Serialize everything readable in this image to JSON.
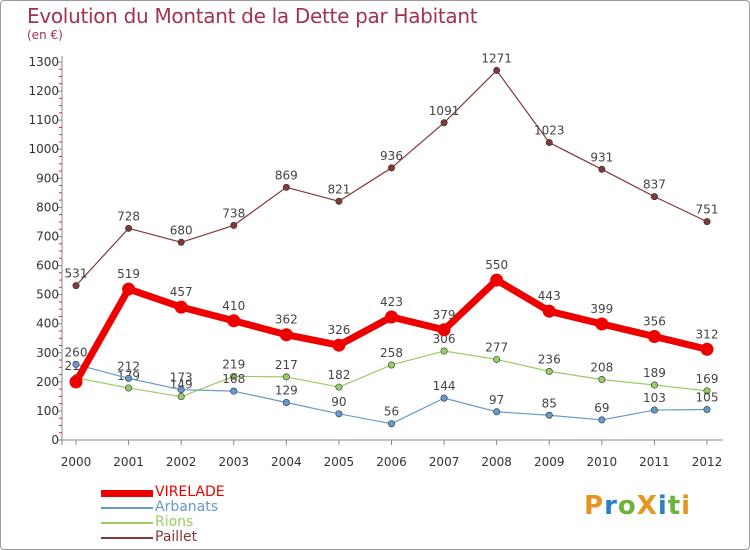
{
  "title": "Evolution du Montant de la Dette par Habitant",
  "subtitle": "(en €)",
  "logo": {
    "text": "ProXiti",
    "letters": [
      {
        "ch": "P",
        "color": "#e8951f"
      },
      {
        "ch": "r",
        "color": "#2a7fc5"
      },
      {
        "ch": "o",
        "color": "#6bb33a"
      },
      {
        "ch": "X",
        "color": "#e8951f"
      },
      {
        "ch": "i",
        "color": "#2a7fc5"
      },
      {
        "ch": "t",
        "color": "#6bb33a"
      },
      {
        "ch": "i",
        "color": "#e8951f"
      }
    ]
  },
  "chart_data": {
    "type": "line",
    "title": "Evolution du Montant de la Dette par Habitant",
    "ylabel": "(en €)",
    "xlabel": "",
    "x": [
      "2000",
      "2001",
      "2002",
      "2003",
      "2004",
      "2005",
      "2006",
      "2007",
      "2008",
      "2009",
      "2010",
      "2011",
      "2012"
    ],
    "ylim": [
      0,
      1300
    ],
    "yticks": [
      0,
      100,
      200,
      300,
      400,
      500,
      600,
      700,
      800,
      900,
      1000,
      1100,
      1200,
      1300
    ],
    "grid": false,
    "legend_position": "bottom-left",
    "series": [
      {
        "name": "VIRELADE",
        "color": "#ee0000",
        "emphasis": true,
        "values": [
          200,
          519,
          457,
          410,
          362,
          326,
          423,
          379,
          550,
          443,
          399,
          356,
          312
        ],
        "labels": [
          "",
          "519",
          "457",
          "410",
          "362",
          "326",
          "423",
          "379",
          "550",
          "443",
          "399",
          "356",
          "312"
        ]
      },
      {
        "name": "Arbanats",
        "color": "#6699cc",
        "values": [
          260,
          212,
          173,
          168,
          129,
          90,
          56,
          144,
          97,
          85,
          69,
          103,
          105
        ],
        "labels": [
          "260",
          "212",
          "173",
          "168",
          "129",
          "90",
          "56",
          "144",
          "97",
          "85",
          "69",
          "103",
          "105"
        ]
      },
      {
        "name": "Rions",
        "color": "#99cc66",
        "values": [
          214,
          179,
          149,
          219,
          217,
          182,
          258,
          306,
          277,
          236,
          208,
          189,
          169
        ],
        "labels": [
          "214",
          "179",
          "149",
          "219",
          "217",
          "182",
          "258",
          "306",
          "277",
          "236",
          "208",
          "189",
          "169"
        ]
      },
      {
        "name": "Paillet",
        "color": "#803838",
        "values": [
          531,
          728,
          680,
          738,
          869,
          821,
          936,
          1091,
          1271,
          1023,
          931,
          837,
          751
        ],
        "labels": [
          "531",
          "728",
          "680",
          "738",
          "869",
          "821",
          "936",
          "1091",
          "1271",
          "1023",
          "931",
          "837",
          "751"
        ]
      }
    ]
  }
}
